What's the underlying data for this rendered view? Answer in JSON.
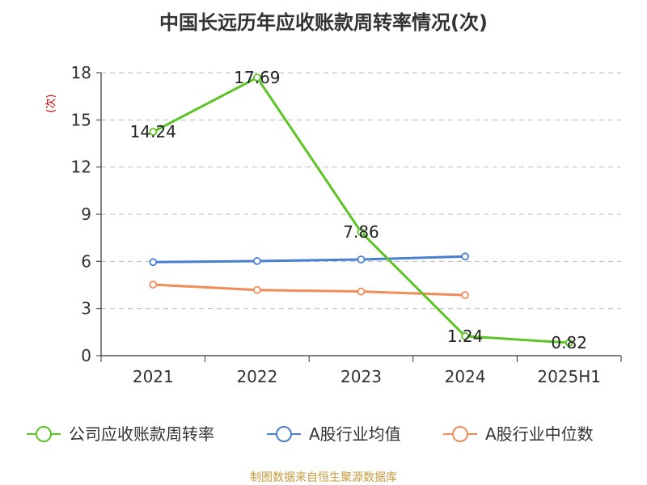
{
  "title": "中国长远历年应收账款周转率情况(次)",
  "source": "制图数据来自恒生聚源数据库",
  "chart_data": {
    "type": "line",
    "title": "中国长远历年应收账款周转率情况(次)",
    "ylabel": "(次)",
    "ylim": [
      0,
      18
    ],
    "yticks": [
      "0",
      "3",
      "6",
      "9",
      "12",
      "15",
      "18"
    ],
    "categories": [
      "2021",
      "2022",
      "2023",
      "2024",
      "2025H1"
    ],
    "grid": true,
    "legend_position": "bottom",
    "series": [
      {
        "name": "公司应收账款周转率",
        "color": "#5cc424",
        "values": [
          14.24,
          17.69,
          7.86,
          1.24,
          0.82
        ],
        "labels": [
          "14.24",
          "17.69",
          "7.86",
          "1.24",
          "0.82"
        ]
      },
      {
        "name": "A股行业均值",
        "color": "#4a7fd4",
        "values": [
          5.95,
          6.02,
          6.12,
          6.31,
          null
        ]
      },
      {
        "name": "A股行业中位数",
        "color": "#f08c5a",
        "values": [
          4.52,
          4.18,
          4.08,
          3.85,
          null
        ]
      }
    ]
  }
}
